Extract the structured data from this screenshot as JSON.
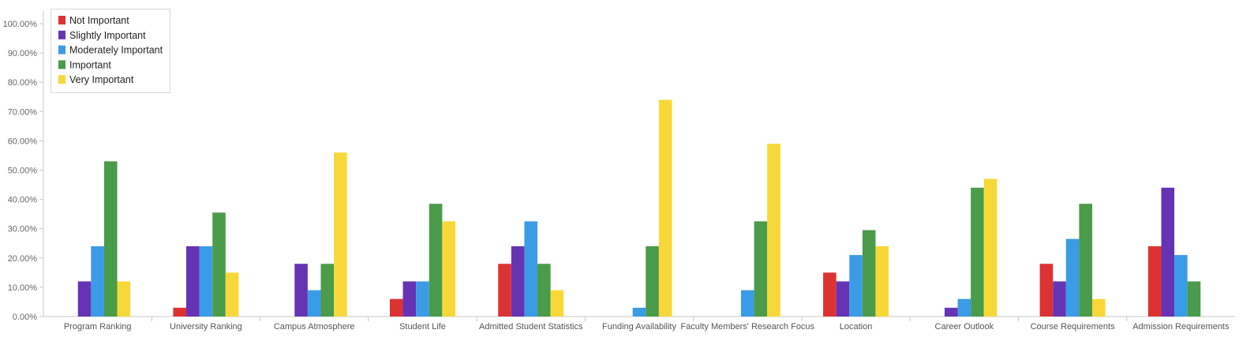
{
  "chart_data": {
    "type": "bar",
    "categories": [
      "Program Ranking",
      "University Ranking",
      "Campus Atmosphere",
      "Student Life",
      "Admitted Student Statistics",
      "Funding Availability",
      "Faculty Members' Research Focus",
      "Location",
      "Career Outlook",
      "Course Requirements",
      "Admission Requirements"
    ],
    "series": [
      {
        "name": "Not Important",
        "color": "#dd3232",
        "values": [
          0,
          3,
          0,
          6,
          18,
          0,
          0,
          15,
          0,
          18,
          24
        ]
      },
      {
        "name": "Slightly Important",
        "color": "#6633b5",
        "values": [
          12,
          24,
          18,
          12,
          24,
          0,
          0,
          12,
          3,
          12,
          44
        ]
      },
      {
        "name": "Moderately Important",
        "color": "#3a9be6",
        "values": [
          24,
          24,
          9,
          12,
          32.5,
          3,
          9,
          21,
          6,
          26.5,
          21
        ]
      },
      {
        "name": "Important",
        "color": "#4a9b4a",
        "values": [
          53,
          35.5,
          18,
          38.5,
          18,
          24,
          32.5,
          29.5,
          44,
          38.5,
          12
        ]
      },
      {
        "name": "Very Important",
        "color": "#f8d838",
        "values": [
          12,
          15,
          56,
          32.5,
          9,
          74,
          59,
          24,
          47,
          6,
          0
        ]
      }
    ],
    "ylim": [
      0,
      100
    ],
    "yticks": [
      "0.00%",
      "10.00%",
      "20.00%",
      "30.00%",
      "40.00%",
      "50.00%",
      "60.00%",
      "70.00%",
      "80.00%",
      "90.00%",
      "100.00%"
    ],
    "legend_position": "top-left",
    "grid": false
  }
}
